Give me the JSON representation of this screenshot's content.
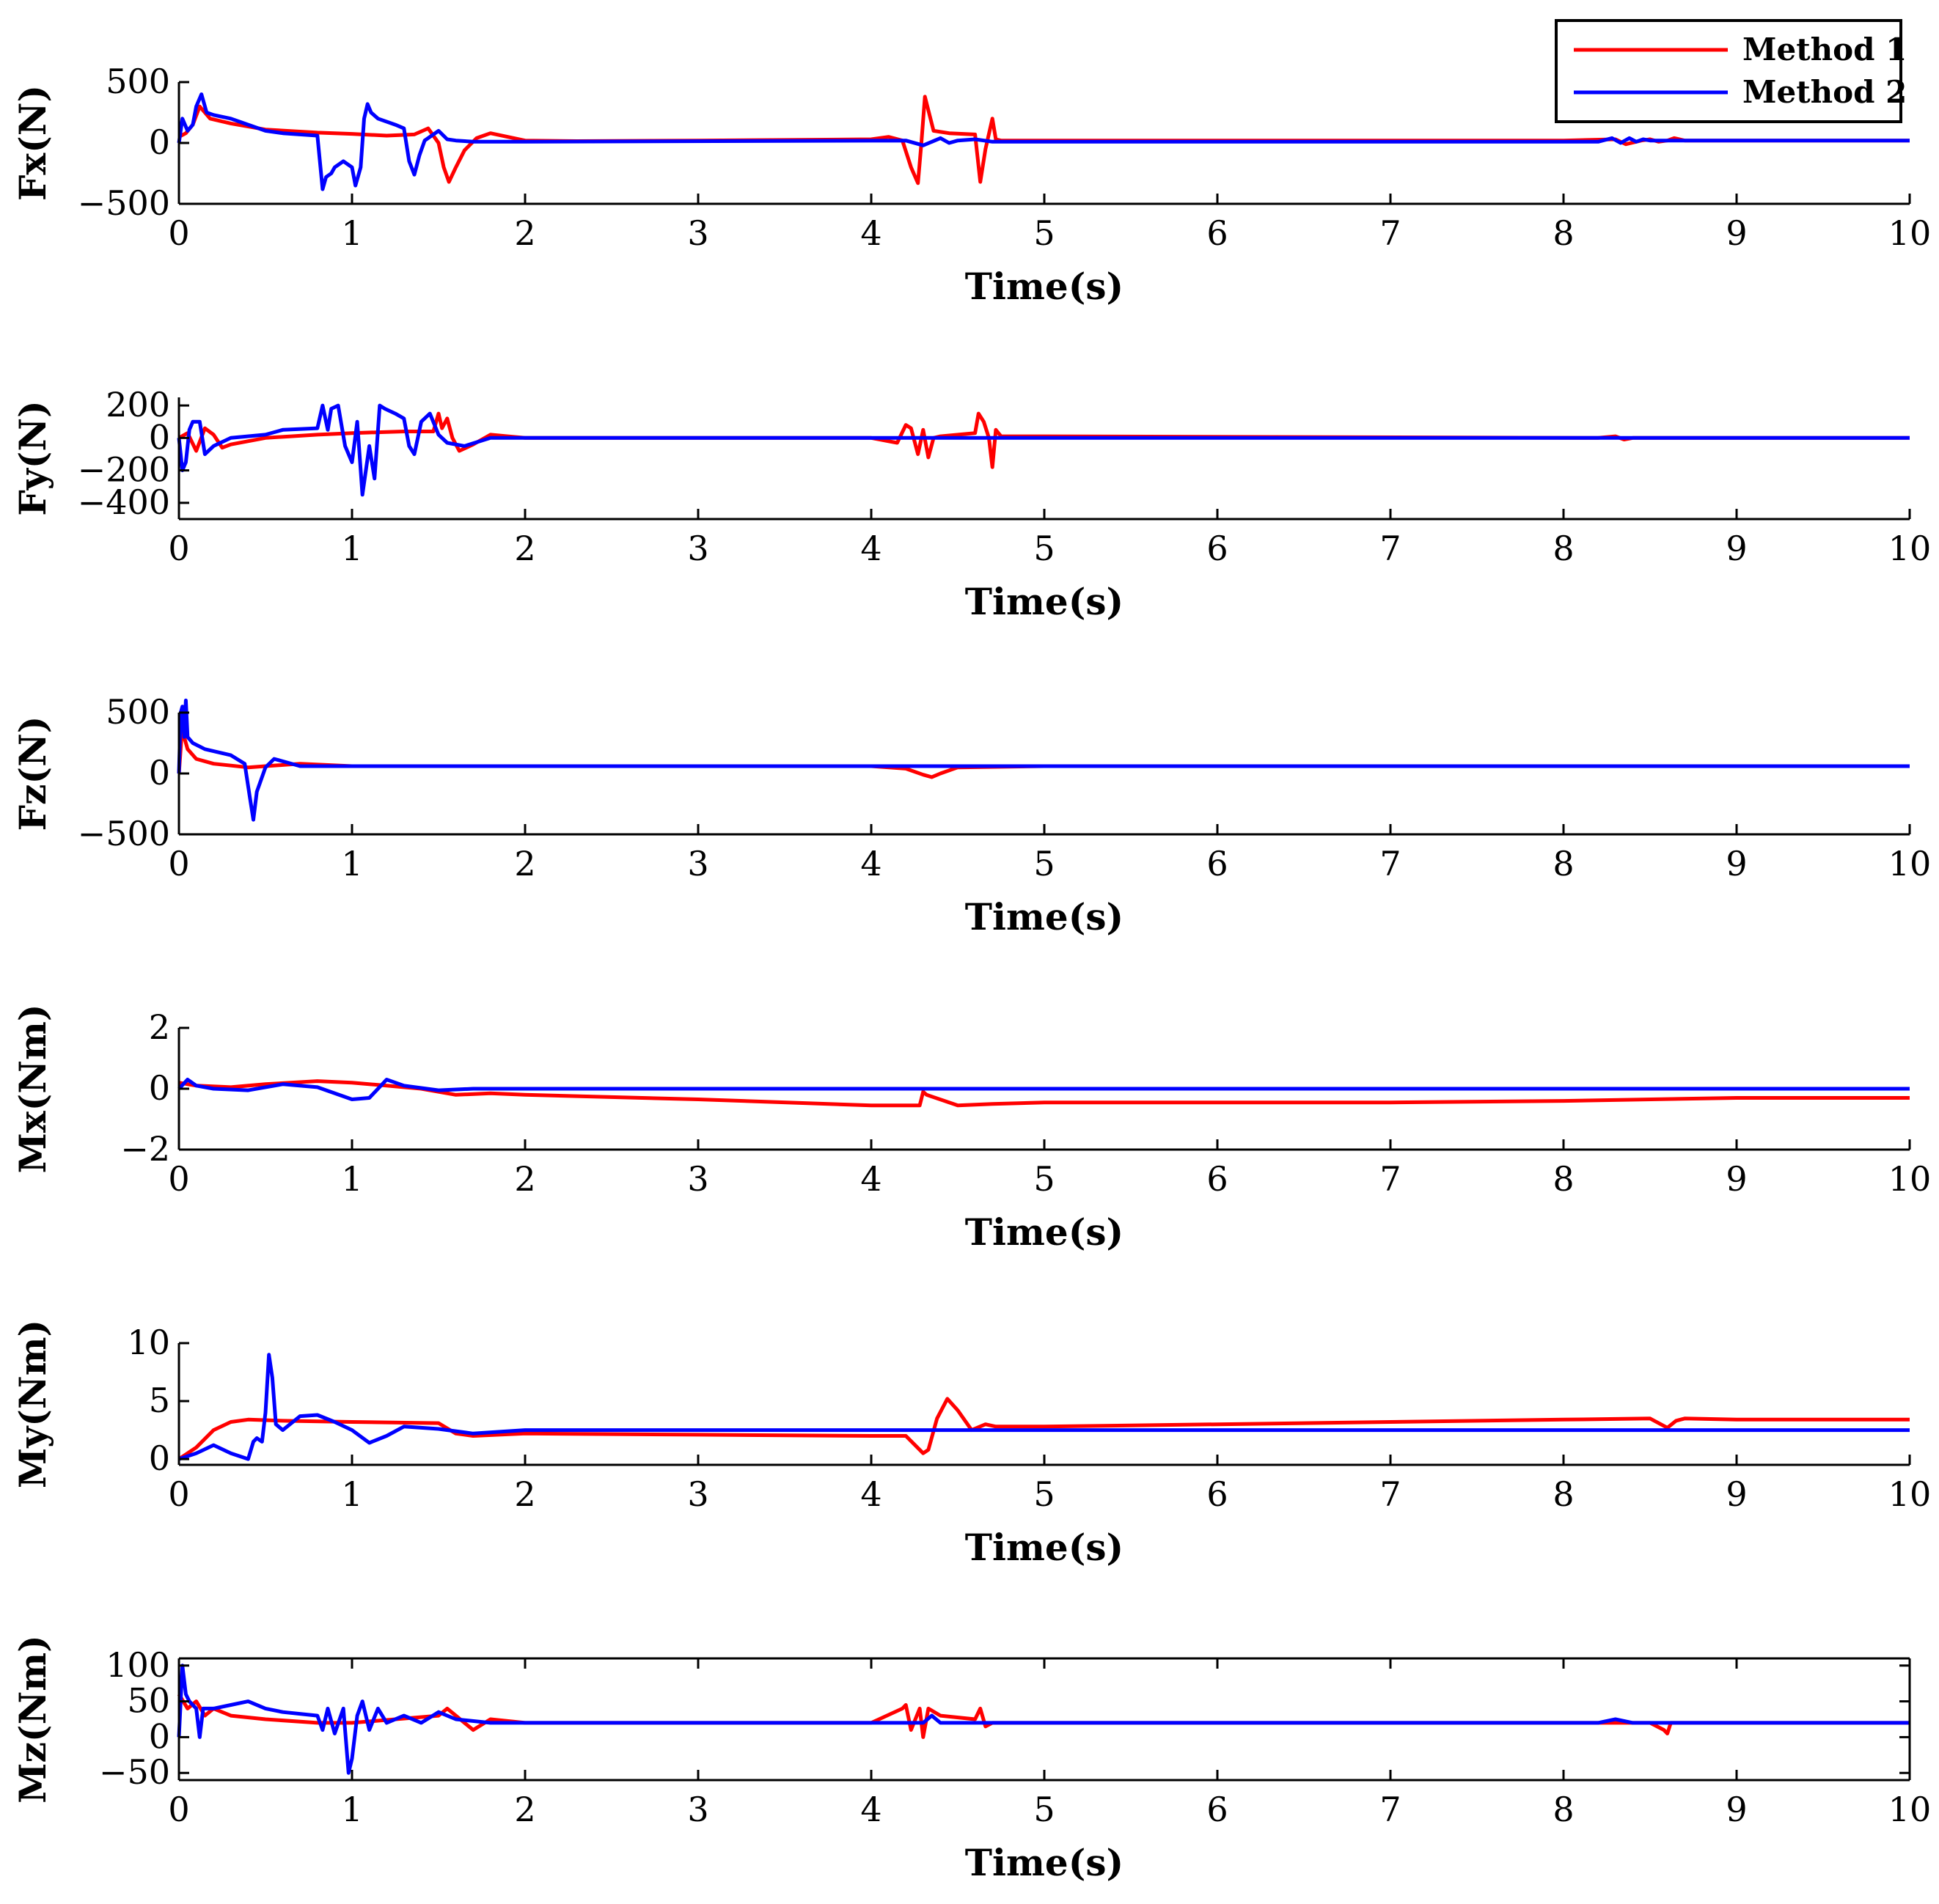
{
  "colors": {
    "method1": "#ff0000",
    "method2": "#0000ff",
    "axis": "#000000",
    "background": "#ffffff"
  },
  "legend": {
    "placement": "top-right",
    "entries": [
      {
        "label": "Method 1",
        "color": "#ff0000"
      },
      {
        "label": "Method 2",
        "color": "#0000ff"
      }
    ]
  },
  "chart_data": [
    {
      "type": "line",
      "id": "fx",
      "ylabel": "Fx(N)",
      "xlabel": "Time(s)",
      "xlim": [
        0,
        10
      ],
      "ylim": [
        -500,
        500
      ],
      "xticks": [
        0,
        1,
        2,
        3,
        4,
        5,
        6,
        7,
        8,
        9,
        10
      ],
      "yticks": [
        -500,
        0,
        500
      ],
      "ytick_labels": [
        "−500",
        "0",
        "500"
      ],
      "series": [
        {
          "name": "Method 1",
          "color": "#ff0000",
          "x": [
            0,
            0.04,
            0.08,
            0.12,
            0.15,
            0.18,
            0.3,
            0.5,
            0.8,
            1.0,
            1.2,
            1.36,
            1.44,
            1.5,
            1.53,
            1.56,
            1.6,
            1.65,
            1.72,
            1.8,
            1.9,
            2.0,
            2.3,
            3.0,
            4.0,
            4.1,
            4.18,
            4.23,
            4.27,
            4.29,
            4.31,
            4.36,
            4.45,
            4.6,
            4.63,
            4.66,
            4.7,
            4.72,
            4.75,
            4.9,
            5.0,
            6.0,
            8.0,
            8.3,
            8.36,
            8.45,
            8.5,
            8.55,
            8.6,
            8.64,
            8.7,
            10.0
          ],
          "y": [
            50,
            80,
            150,
            300,
            250,
            200,
            160,
            110,
            85,
            75,
            60,
            70,
            120,
            0,
            -200,
            -320,
            -200,
            -60,
            40,
            80,
            50,
            20,
            15,
            20,
            30,
            50,
            20,
            -200,
            -330,
            0,
            380,
            100,
            80,
            70,
            -320,
            -50,
            200,
            30,
            20,
            20,
            20,
            20,
            20,
            30,
            -10,
            20,
            30,
            10,
            20,
            40,
            20,
            20
          ]
        },
        {
          "name": "Method 2",
          "color": "#0000ff",
          "x": [
            0,
            0.02,
            0.05,
            0.08,
            0.1,
            0.13,
            0.16,
            0.2,
            0.3,
            0.4,
            0.5,
            0.6,
            0.8,
            0.83,
            0.85,
            0.88,
            0.9,
            0.95,
            1.0,
            1.02,
            1.05,
            1.07,
            1.09,
            1.11,
            1.15,
            1.25,
            1.3,
            1.33,
            1.36,
            1.39,
            1.42,
            1.45,
            1.5,
            1.55,
            1.6,
            1.7,
            2.0,
            4.2,
            4.3,
            4.4,
            4.45,
            4.5,
            4.6,
            4.7,
            5.0,
            8.2,
            8.28,
            8.33,
            8.38,
            8.42,
            8.46,
            8.5,
            10.0
          ],
          "y": [
            0,
            200,
            100,
            150,
            300,
            400,
            250,
            230,
            200,
            150,
            100,
            80,
            60,
            -380,
            -280,
            -250,
            -200,
            -150,
            -200,
            -350,
            -200,
            200,
            320,
            250,
            200,
            150,
            120,
            -150,
            -260,
            -100,
            20,
            50,
            100,
            30,
            20,
            10,
            10,
            20,
            -20,
            40,
            0,
            20,
            30,
            10,
            10,
            10,
            40,
            0,
            40,
            10,
            30,
            20,
            20
          ]
        }
      ]
    },
    {
      "type": "line",
      "id": "fy",
      "ylabel": "Fy(N)",
      "xlabel": "Time(s)",
      "xlim": [
        0,
        10
      ],
      "ylim": [
        -500,
        250
      ],
      "xticks": [
        0,
        1,
        2,
        3,
        4,
        5,
        6,
        7,
        8,
        9,
        10
      ],
      "yticks": [
        -400,
        -200,
        0,
        200
      ],
      "ytick_labels": [
        "−400",
        "−200",
        "0",
        "200"
      ],
      "series": [
        {
          "name": "Method 1",
          "color": "#ff0000",
          "x": [
            0,
            0.05,
            0.1,
            0.15,
            0.2,
            0.25,
            0.3,
            0.5,
            0.8,
            1.0,
            1.3,
            1.47,
            1.5,
            1.52,
            1.55,
            1.58,
            1.62,
            1.7,
            1.8,
            1.9,
            2.0,
            4.0,
            4.15,
            4.2,
            4.23,
            4.27,
            4.3,
            4.33,
            4.36,
            4.4,
            4.6,
            4.62,
            4.65,
            4.68,
            4.7,
            4.72,
            4.75,
            4.9,
            5.0,
            8.2,
            8.3,
            8.35,
            8.4,
            10.0
          ],
          "y": [
            0,
            30,
            -80,
            60,
            20,
            -60,
            -40,
            0,
            20,
            30,
            40,
            40,
            150,
            60,
            120,
            0,
            -80,
            -40,
            20,
            10,
            0,
            0,
            -30,
            80,
            60,
            -100,
            50,
            -120,
            0,
            10,
            30,
            150,
            100,
            0,
            -180,
            50,
            10,
            10,
            10,
            0,
            10,
            -10,
            0,
            0
          ]
        },
        {
          "name": "Method 2",
          "color": "#0000ff",
          "x": [
            0,
            0.02,
            0.04,
            0.06,
            0.08,
            0.12,
            0.15,
            0.2,
            0.3,
            0.5,
            0.6,
            0.8,
            0.83,
            0.86,
            0.88,
            0.92,
            0.96,
            1.0,
            1.03,
            1.06,
            1.08,
            1.1,
            1.13,
            1.16,
            1.19,
            1.25,
            1.3,
            1.33,
            1.36,
            1.4,
            1.45,
            1.5,
            1.55,
            1.65,
            1.8,
            2.0,
            10.0
          ],
          "y": [
            0,
            -200,
            -150,
            50,
            100,
            100,
            -100,
            -50,
            0,
            20,
            50,
            60,
            200,
            50,
            180,
            200,
            -50,
            -150,
            100,
            -350,
            -200,
            -50,
            -250,
            200,
            180,
            150,
            120,
            -50,
            -100,
            100,
            150,
            20,
            -30,
            -50,
            0,
            0,
            0
          ]
        }
      ]
    },
    {
      "type": "line",
      "id": "fz",
      "ylabel": "Fz(N)",
      "xlabel": "Time(s)",
      "xlim": [
        0,
        10
      ],
      "ylim": [
        -500,
        500
      ],
      "xticks": [
        0,
        1,
        2,
        3,
        4,
        5,
        6,
        7,
        8,
        9,
        10
      ],
      "yticks": [
        -500,
        0,
        500
      ],
      "ytick_labels": [
        "−500",
        "0",
        "500"
      ],
      "series": [
        {
          "name": "Method 1",
          "color": "#ff0000",
          "x": [
            0,
            0.02,
            0.03,
            0.05,
            0.1,
            0.2,
            0.4,
            0.5,
            0.6,
            0.7,
            1.0,
            2.0,
            4.0,
            4.2,
            4.3,
            4.35,
            4.4,
            4.5,
            5.0,
            10.0
          ],
          "y": [
            0,
            400,
            300,
            200,
            120,
            80,
            50,
            60,
            70,
            80,
            60,
            60,
            60,
            40,
            -10,
            -30,
            0,
            50,
            60,
            60
          ]
        },
        {
          "name": "Method 2",
          "color": "#0000ff",
          "x": [
            0,
            0.01,
            0.02,
            0.03,
            0.04,
            0.05,
            0.08,
            0.15,
            0.3,
            0.38,
            0.41,
            0.43,
            0.45,
            0.5,
            0.55,
            0.6,
            0.7,
            1.0,
            10.0
          ],
          "y": [
            0,
            500,
            550,
            300,
            600,
            300,
            250,
            200,
            150,
            80,
            -200,
            -380,
            -150,
            50,
            120,
            100,
            60,
            60,
            60
          ]
        }
      ]
    },
    {
      "type": "line",
      "id": "mx",
      "ylabel": "Mx(Nm)",
      "xlabel": "Time(s)",
      "xlim": [
        0,
        10
      ],
      "ylim": [
        -2,
        2
      ],
      "xticks": [
        0,
        1,
        2,
        3,
        4,
        5,
        6,
        7,
        8,
        9,
        10
      ],
      "yticks": [
        -2,
        0,
        2
      ],
      "ytick_labels": [
        "−2",
        "0",
        "2"
      ],
      "series": [
        {
          "name": "Method 1",
          "color": "#ff0000",
          "x": [
            0,
            0.1,
            0.3,
            0.5,
            0.8,
            1.0,
            1.2,
            1.4,
            1.6,
            1.8,
            2.0,
            3.0,
            4.0,
            4.28,
            4.3,
            4.32,
            4.5,
            4.7,
            5.0,
            6.0,
            7.0,
            8.0,
            9.0,
            10.0
          ],
          "y": [
            0.2,
            0.1,
            0.05,
            0.15,
            0.25,
            0.2,
            0.1,
            0,
            -0.2,
            -0.15,
            -0.2,
            -0.35,
            -0.55,
            -0.55,
            -0.1,
            -0.2,
            -0.55,
            -0.5,
            -0.45,
            -0.45,
            -0.45,
            -0.4,
            -0.3,
            -0.3
          ]
        },
        {
          "name": "Method 2",
          "color": "#0000ff",
          "x": [
            0,
            0.05,
            0.1,
            0.2,
            0.4,
            0.6,
            0.8,
            1.0,
            1.1,
            1.2,
            1.3,
            1.5,
            1.7,
            2.0,
            10.0
          ],
          "y": [
            0,
            0.3,
            0.1,
            0,
            -0.05,
            0.15,
            0.05,
            -0.35,
            -0.3,
            0.3,
            0.1,
            -0.05,
            0,
            0,
            0
          ]
        }
      ]
    },
    {
      "type": "line",
      "id": "my",
      "ylabel": "My(Nm)",
      "xlabel": "Time(s)",
      "xlim": [
        0,
        10
      ],
      "ylim": [
        -0.5,
        10
      ],
      "xticks": [
        0,
        1,
        2,
        3,
        4,
        5,
        6,
        7,
        8,
        9,
        10
      ],
      "yticks": [
        0,
        5,
        10
      ],
      "ytick_labels": [
        "0",
        "5",
        "10"
      ],
      "series": [
        {
          "name": "Method 1",
          "color": "#ff0000",
          "x": [
            0,
            0.1,
            0.2,
            0.3,
            0.4,
            0.6,
            1.0,
            1.5,
            1.6,
            1.7,
            2.0,
            3.0,
            4.0,
            4.2,
            4.3,
            4.33,
            4.38,
            4.44,
            4.5,
            4.58,
            4.66,
            4.72,
            5.0,
            6.0,
            7.0,
            8.0,
            8.5,
            8.6,
            8.65,
            8.7,
            9.0,
            10.0
          ],
          "y": [
            0,
            1,
            2.5,
            3.2,
            3.4,
            3.3,
            3.2,
            3.1,
            2.2,
            2,
            2.2,
            2.1,
            2.0,
            2.0,
            0.5,
            0.8,
            3.5,
            5.2,
            4.2,
            2.5,
            3.0,
            2.8,
            2.8,
            3.0,
            3.2,
            3.4,
            3.5,
            2.7,
            3.3,
            3.5,
            3.4,
            3.4
          ]
        },
        {
          "name": "Method 2",
          "color": "#0000ff",
          "x": [
            0,
            0.1,
            0.2,
            0.3,
            0.4,
            0.43,
            0.45,
            0.48,
            0.5,
            0.52,
            0.54,
            0.56,
            0.6,
            0.7,
            0.8,
            0.9,
            1.0,
            1.1,
            1.2,
            1.3,
            1.5,
            1.7,
            2.0,
            10.0
          ],
          "y": [
            0,
            0.5,
            1.2,
            0.5,
            0,
            1.5,
            1.8,
            1.5,
            4.0,
            9.0,
            7.0,
            3.0,
            2.5,
            3.7,
            3.8,
            3.2,
            2.5,
            1.4,
            2.0,
            2.8,
            2.6,
            2.2,
            2.5,
            2.5
          ]
        }
      ]
    },
    {
      "type": "line",
      "id": "mz",
      "ylabel": "Mz(Nm)",
      "xlabel": "Time(s)",
      "xlim": [
        0,
        10
      ],
      "ylim": [
        -60,
        110
      ],
      "xticks": [
        0,
        1,
        2,
        3,
        4,
        5,
        6,
        7,
        8,
        9,
        10
      ],
      "yticks": [
        -50,
        0,
        50,
        100
      ],
      "ytick_labels": [
        "−50",
        "0",
        "50",
        "100"
      ],
      "series": [
        {
          "name": "Method 1",
          "color": "#ff0000",
          "x": [
            0,
            0.05,
            0.1,
            0.15,
            0.2,
            0.3,
            0.5,
            0.8,
            1.0,
            1.5,
            1.55,
            1.6,
            1.65,
            1.7,
            1.8,
            2.0,
            4.0,
            4.18,
            4.2,
            4.23,
            4.28,
            4.3,
            4.33,
            4.4,
            4.6,
            4.63,
            4.66,
            4.7,
            5.0,
            8.5,
            8.58,
            8.6,
            8.62,
            8.7,
            10.0
          ],
          "y": [
            60,
            40,
            50,
            30,
            40,
            30,
            25,
            20,
            20,
            30,
            40,
            30,
            20,
            10,
            25,
            20,
            20,
            40,
            45,
            10,
            40,
            0,
            40,
            30,
            25,
            40,
            15,
            20,
            20,
            20,
            10,
            5,
            20,
            20,
            20
          ]
        },
        {
          "name": "Method 2",
          "color": "#0000ff",
          "x": [
            0,
            0.02,
            0.04,
            0.06,
            0.1,
            0.12,
            0.14,
            0.2,
            0.3,
            0.4,
            0.5,
            0.6,
            0.8,
            0.83,
            0.86,
            0.9,
            0.95,
            0.98,
            1.0,
            1.03,
            1.06,
            1.1,
            1.15,
            1.2,
            1.3,
            1.4,
            1.5,
            1.6,
            1.8,
            2.0,
            4.3,
            4.35,
            4.4,
            4.5,
            5.0,
            8.2,
            8.3,
            8.4,
            10.0
          ],
          "y": [
            0,
            100,
            60,
            50,
            40,
            0,
            40,
            40,
            45,
            50,
            40,
            35,
            30,
            10,
            40,
            5,
            40,
            -50,
            -30,
            30,
            50,
            10,
            40,
            20,
            30,
            20,
            35,
            25,
            20,
            20,
            20,
            30,
            20,
            20,
            20,
            20,
            25,
            20,
            20
          ]
        }
      ]
    }
  ]
}
